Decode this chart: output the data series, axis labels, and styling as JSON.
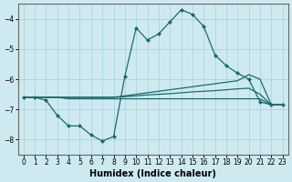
{
  "xlabel": "Humidex (Indice chaleur)",
  "background_color": "#ceeaf0",
  "grid_color": "#aad4dc",
  "line_color": "#1a6b6b",
  "x_values": [
    0,
    1,
    2,
    3,
    4,
    5,
    6,
    7,
    8,
    9,
    10,
    11,
    12,
    13,
    14,
    15,
    16,
    17,
    18,
    19,
    20,
    21,
    22,
    23
  ],
  "main_line": [
    -6.6,
    -6.6,
    -6.7,
    -7.2,
    -7.55,
    -7.55,
    -7.85,
    -8.05,
    -7.9,
    -5.9,
    -4.3,
    -4.7,
    -4.5,
    -4.1,
    -3.7,
    -3.85,
    -4.25,
    -5.2,
    -5.55,
    -5.8,
    -6.0,
    -6.75,
    -6.85,
    -6.85
  ],
  "line_upper": [
    -6.6,
    -6.6,
    -6.6,
    -6.6,
    -6.6,
    -6.6,
    -6.6,
    -6.6,
    -6.6,
    -6.55,
    -6.5,
    -6.45,
    -6.4,
    -6.35,
    -6.3,
    -6.25,
    -6.2,
    -6.15,
    -6.1,
    -6.05,
    -5.85,
    -6.0,
    -6.85,
    -6.85
  ],
  "line_mid": [
    -6.6,
    -6.6,
    -6.6,
    -6.6,
    -6.6,
    -6.6,
    -6.6,
    -6.6,
    -6.6,
    -6.58,
    -6.55,
    -6.52,
    -6.5,
    -6.48,
    -6.45,
    -6.42,
    -6.4,
    -6.38,
    -6.35,
    -6.32,
    -6.3,
    -6.5,
    -6.85,
    -6.85
  ],
  "line_lower": [
    -6.6,
    -6.6,
    -6.6,
    -6.6,
    -6.65,
    -6.65,
    -6.65,
    -6.65,
    -6.65,
    -6.65,
    -6.65,
    -6.65,
    -6.65,
    -6.65,
    -6.65,
    -6.65,
    -6.65,
    -6.65,
    -6.65,
    -6.65,
    -6.65,
    -6.65,
    -6.85,
    -6.85
  ],
  "ylim": [
    -8.5,
    -3.5
  ],
  "xlim": [
    -0.5,
    23.5
  ],
  "yticks": [
    -8,
    -7,
    -6,
    -5,
    -4
  ],
  "xticks": [
    0,
    1,
    2,
    3,
    4,
    5,
    6,
    7,
    8,
    9,
    10,
    11,
    12,
    13,
    14,
    15,
    16,
    17,
    18,
    19,
    20,
    21,
    22,
    23
  ]
}
